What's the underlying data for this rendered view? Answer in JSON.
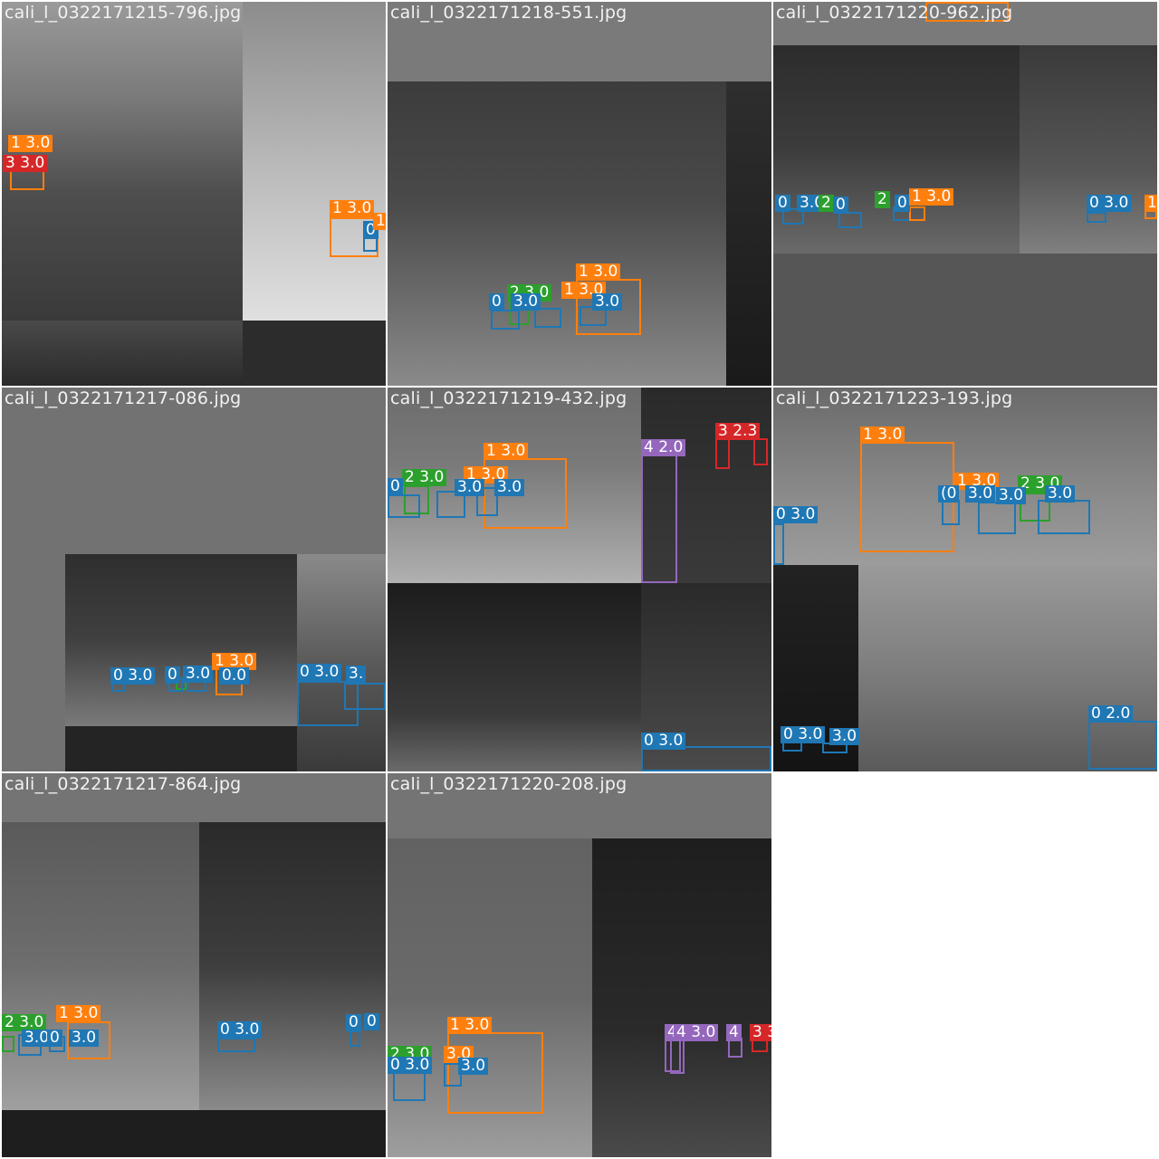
{
  "tiles": [
    {
      "filename": "cali_l_0322171215-796.jpg",
      "labels": [
        "1 3.0",
        "3 3.0",
        "1 3.0",
        "0",
        "1"
      ]
    },
    {
      "filename": "cali_l_0322171218-551.jpg",
      "labels": [
        "1 3.0",
        "2 3.0",
        "1 3.0",
        "0",
        "3.0",
        "3.0"
      ]
    },
    {
      "filename": "cali_l_0322171220-962.jpg",
      "labels": [
        "0",
        "3.0",
        "2",
        "0",
        "2",
        "0",
        "1 3.0",
        "0 3.0",
        "1"
      ]
    },
    {
      "filename": "cali_l_0322171217-086.jpg",
      "labels": [
        "0 3.0",
        "0",
        "3.0",
        "1 3.0",
        "0.0",
        "0 3.0",
        "3."
      ]
    },
    {
      "filename": "cali_l_0322171219-432.jpg",
      "labels": [
        "1 3.0",
        "2 3.0",
        "1 3.0",
        "0",
        "3.0",
        "3.0",
        "4 2.0",
        "3 2.3",
        "0 3.0"
      ]
    },
    {
      "filename": "cali_l_0322171223-193.jpg",
      "labels": [
        "1 3.0",
        "1 3.0",
        "2 3.0",
        "(0",
        "3.0",
        "3.0",
        "3.0",
        "0 3.0",
        "0 3.0",
        "3.0",
        "0 2.0"
      ]
    },
    {
      "filename": "cali_l_0322171217-864.jpg",
      "labels": [
        "1 3.0",
        "2 3.0",
        "3.0",
        "0",
        "3.0",
        "0 3.0",
        "0",
        "0"
      ]
    },
    {
      "filename": "cali_l_0322171220-208.jpg",
      "labels": [
        "1 3.0",
        "2 3.0",
        "3.0",
        "0 3.0",
        "3.0",
        "4",
        "4 3.0",
        "4",
        "3 3.0"
      ]
    }
  ],
  "class_colors": {
    "0": "#1f77b4",
    "1": "#ff7f0e",
    "2": "#2ca02c",
    "3": "#d62728",
    "4": "#9467bd"
  }
}
